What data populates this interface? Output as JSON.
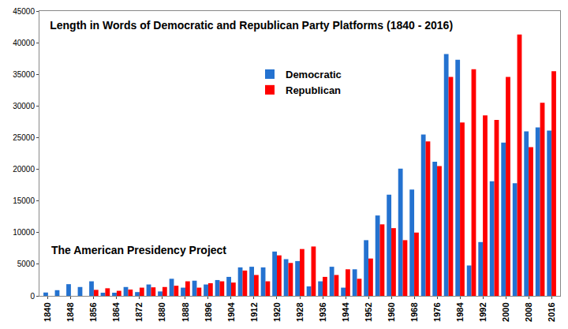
{
  "chart_data": {
    "type": "bar",
    "title": "Length in Words of Democratic and Republican Party Platforms (1840 - 2016)",
    "annotations": [
      "The American Presidency Project"
    ],
    "x": [
      1840,
      1844,
      1848,
      1852,
      1856,
      1860,
      1864,
      1868,
      1872,
      1876,
      1880,
      1884,
      1888,
      1892,
      1896,
      1900,
      1904,
      1908,
      1912,
      1916,
      1920,
      1924,
      1928,
      1932,
      1936,
      1940,
      1944,
      1948,
      1952,
      1956,
      1960,
      1964,
      1968,
      1972,
      1976,
      1980,
      1984,
      1988,
      1992,
      1996,
      2000,
      2004,
      2008,
      2012,
      2016
    ],
    "series": [
      {
        "name": "Democratic",
        "color": "#2472d0",
        "values": [
          530,
          900,
          1850,
          1400,
          2300,
          500,
          500,
          1400,
          600,
          1800,
          700,
          2700,
          1300,
          2400,
          1800,
          2500,
          3000,
          4500,
          4600,
          4500,
          7000,
          5800,
          5500,
          1500,
          2300,
          4600,
          1300,
          4200,
          8800,
          12700,
          16000,
          20100,
          16800,
          25500,
          21200,
          38200,
          37300,
          4800,
          8500,
          18100,
          24200,
          17800,
          26000,
          26600,
          26100
        ]
      },
      {
        "name": "Republican",
        "color": "#ff0000",
        "values": [
          null,
          null,
          null,
          null,
          950,
          1200,
          800,
          1000,
          1300,
          1350,
          1400,
          1600,
          2300,
          1300,
          2000,
          2300,
          2100,
          4000,
          3300,
          2300,
          6400,
          5200,
          7400,
          7800,
          3000,
          3300,
          4200,
          2700,
          5900,
          11300,
          10700,
          8800,
          10000,
          24400,
          20500,
          34600,
          27400,
          35800,
          28500,
          27800,
          34600,
          41300,
          23500,
          30500,
          35500
        ]
      }
    ],
    "xlim": [
      1837,
      2019
    ],
    "xticks": [
      1840,
      1848,
      1856,
      1864,
      1872,
      1880,
      1888,
      1896,
      1904,
      1912,
      1920,
      1928,
      1936,
      1944,
      1952,
      1960,
      1968,
      1976,
      1984,
      1992,
      2000,
      2008,
      2016
    ],
    "ylim": [
      0,
      45000
    ],
    "yticks": [
      0,
      5000,
      10000,
      15000,
      20000,
      25000,
      30000,
      35000,
      40000,
      45000
    ],
    "grid": false,
    "legend": "top"
  }
}
